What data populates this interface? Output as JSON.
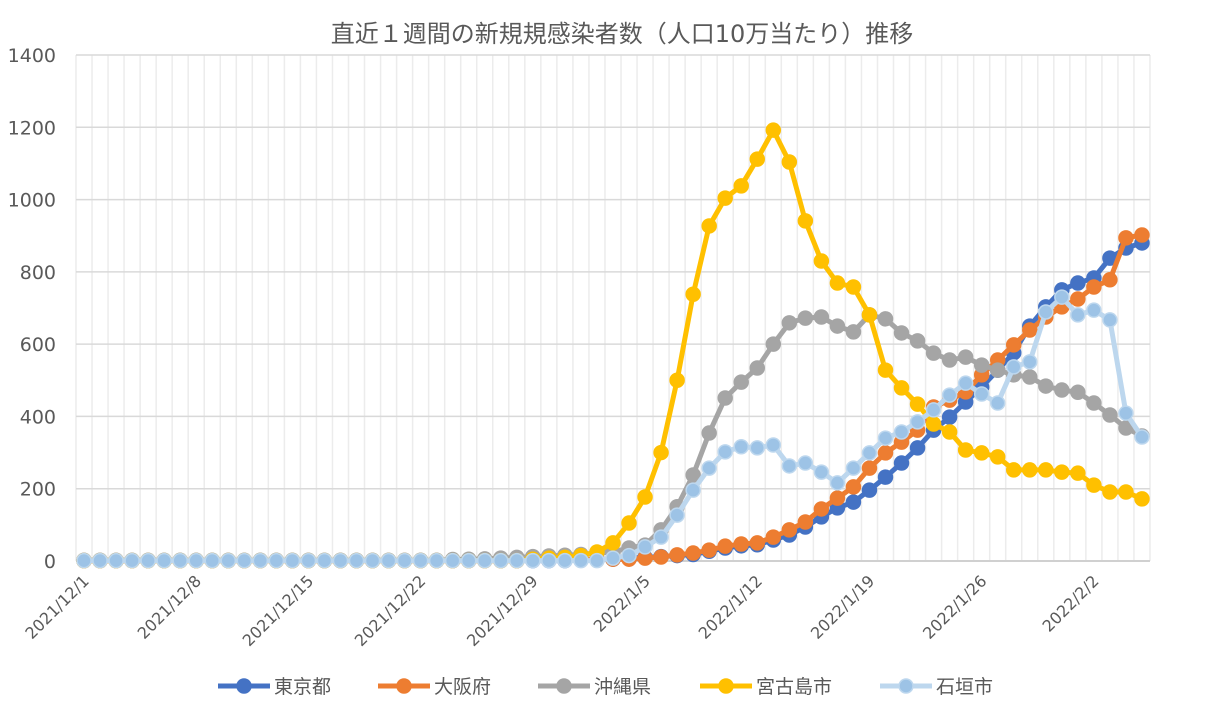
{
  "chart_data": {
    "type": "line",
    "title": "直近１週間の新規規感染者数（人口10万当たり）推移",
    "xlabel": "",
    "ylabel": "",
    "ylim": [
      0,
      1400
    ],
    "y_ticks": [
      "0",
      "200",
      "400",
      "600",
      "800",
      "1000",
      "1200",
      "1400"
    ],
    "x_start": "2021/12/1",
    "x_end": "2022/2/6",
    "x_tick_labels": [
      "2021/12/1",
      "2021/12/8",
      "2021/12/15",
      "2021/12/22",
      "2021/12/29",
      "2022/1/5",
      "2022/1/12",
      "2022/1/19",
      "2022/1/26",
      "2022/2/2"
    ],
    "grid": true,
    "legend_position": "bottom",
    "series": [
      {
        "name": "東京都",
        "color": "#4472C4",
        "line_color": "#4472C4",
        "values": [
          1,
          1,
          1,
          1,
          1,
          1,
          1,
          1,
          1,
          1,
          1,
          1,
          1,
          1,
          1,
          1,
          1,
          1,
          1,
          1,
          1,
          1,
          1,
          1,
          1,
          1,
          1,
          1,
          1,
          1,
          1,
          2,
          3,
          5,
          8,
          10,
          12,
          15,
          18,
          27,
          36,
          42,
          45,
          58,
          72,
          94,
          122,
          147,
          163,
          196,
          232,
          271,
          313,
          362,
          398,
          440,
          481,
          528,
          576,
          650,
          703,
          750,
          769,
          783,
          838,
          866,
          880
        ]
      },
      {
        "name": "大阪府",
        "color": "#ED7D31",
        "line_color": "#ED7D31",
        "values": [
          1,
          1,
          1,
          1,
          1,
          1,
          1,
          1,
          1,
          1,
          1,
          1,
          1,
          1,
          1,
          1,
          1,
          1,
          1,
          1,
          1,
          1,
          1,
          1,
          1,
          1,
          1,
          1,
          2,
          2,
          3,
          3,
          4,
          5,
          5,
          8,
          11,
          17,
          22,
          30,
          41,
          47,
          50,
          66,
          86,
          108,
          144,
          174,
          205,
          257,
          299,
          329,
          362,
          426,
          445,
          468,
          515,
          556,
          598,
          639,
          675,
          703,
          725,
          758,
          778,
          894,
          902
        ]
      },
      {
        "name": "沖縄県",
        "color": "#A5A5A5",
        "line_color": "#A5A5A5",
        "values": [
          2,
          2,
          2,
          2,
          2,
          2,
          2,
          2,
          2,
          2,
          2,
          2,
          2,
          2,
          2,
          2,
          2,
          2,
          2,
          2,
          2,
          2,
          2,
          4,
          5,
          6,
          8,
          10,
          12,
          14,
          16,
          18,
          22,
          25,
          36,
          44,
          86,
          150,
          238,
          354,
          451,
          495,
          534,
          600,
          659,
          672,
          675,
          650,
          634,
          681,
          670,
          631,
          609,
          575,
          556,
          564,
          542,
          528,
          515,
          509,
          484,
          473,
          467,
          437,
          404,
          368,
          346
        ]
      },
      {
        "name": "宮古島市",
        "color": "#FFC000",
        "line_color": "#FFC000",
        "values": [
          1,
          1,
          1,
          1,
          1,
          1,
          1,
          1,
          1,
          1,
          1,
          1,
          1,
          1,
          1,
          1,
          1,
          1,
          1,
          1,
          1,
          1,
          1,
          1,
          1,
          1,
          1,
          1,
          5,
          8,
          10,
          15,
          25,
          50,
          105,
          177,
          300,
          500,
          738,
          927,
          1004,
          1038,
          1112,
          1192,
          1104,
          941,
          830,
          769,
          758,
          681,
          528,
          479,
          434,
          379,
          357,
          307,
          299,
          288,
          252,
          252,
          252,
          246,
          243,
          210,
          191,
          191,
          172
        ]
      },
      {
        "name": "石垣市",
        "color": "#9DC3E6",
        "line_color": "#BDD7EE",
        "values": [
          1,
          1,
          1,
          1,
          1,
          1,
          1,
          1,
          1,
          1,
          1,
          1,
          1,
          1,
          1,
          1,
          1,
          1,
          1,
          1,
          1,
          1,
          1,
          1,
          1,
          1,
          1,
          1,
          1,
          1,
          1,
          1,
          1,
          8,
          15,
          39,
          66,
          127,
          196,
          257,
          302,
          316,
          313,
          321,
          263,
          271,
          246,
          216,
          257,
          299,
          340,
          357,
          385,
          418,
          459,
          492,
          462,
          437,
          537,
          551,
          689,
          730,
          681,
          694,
          667,
          409,
          343
        ]
      }
    ]
  }
}
